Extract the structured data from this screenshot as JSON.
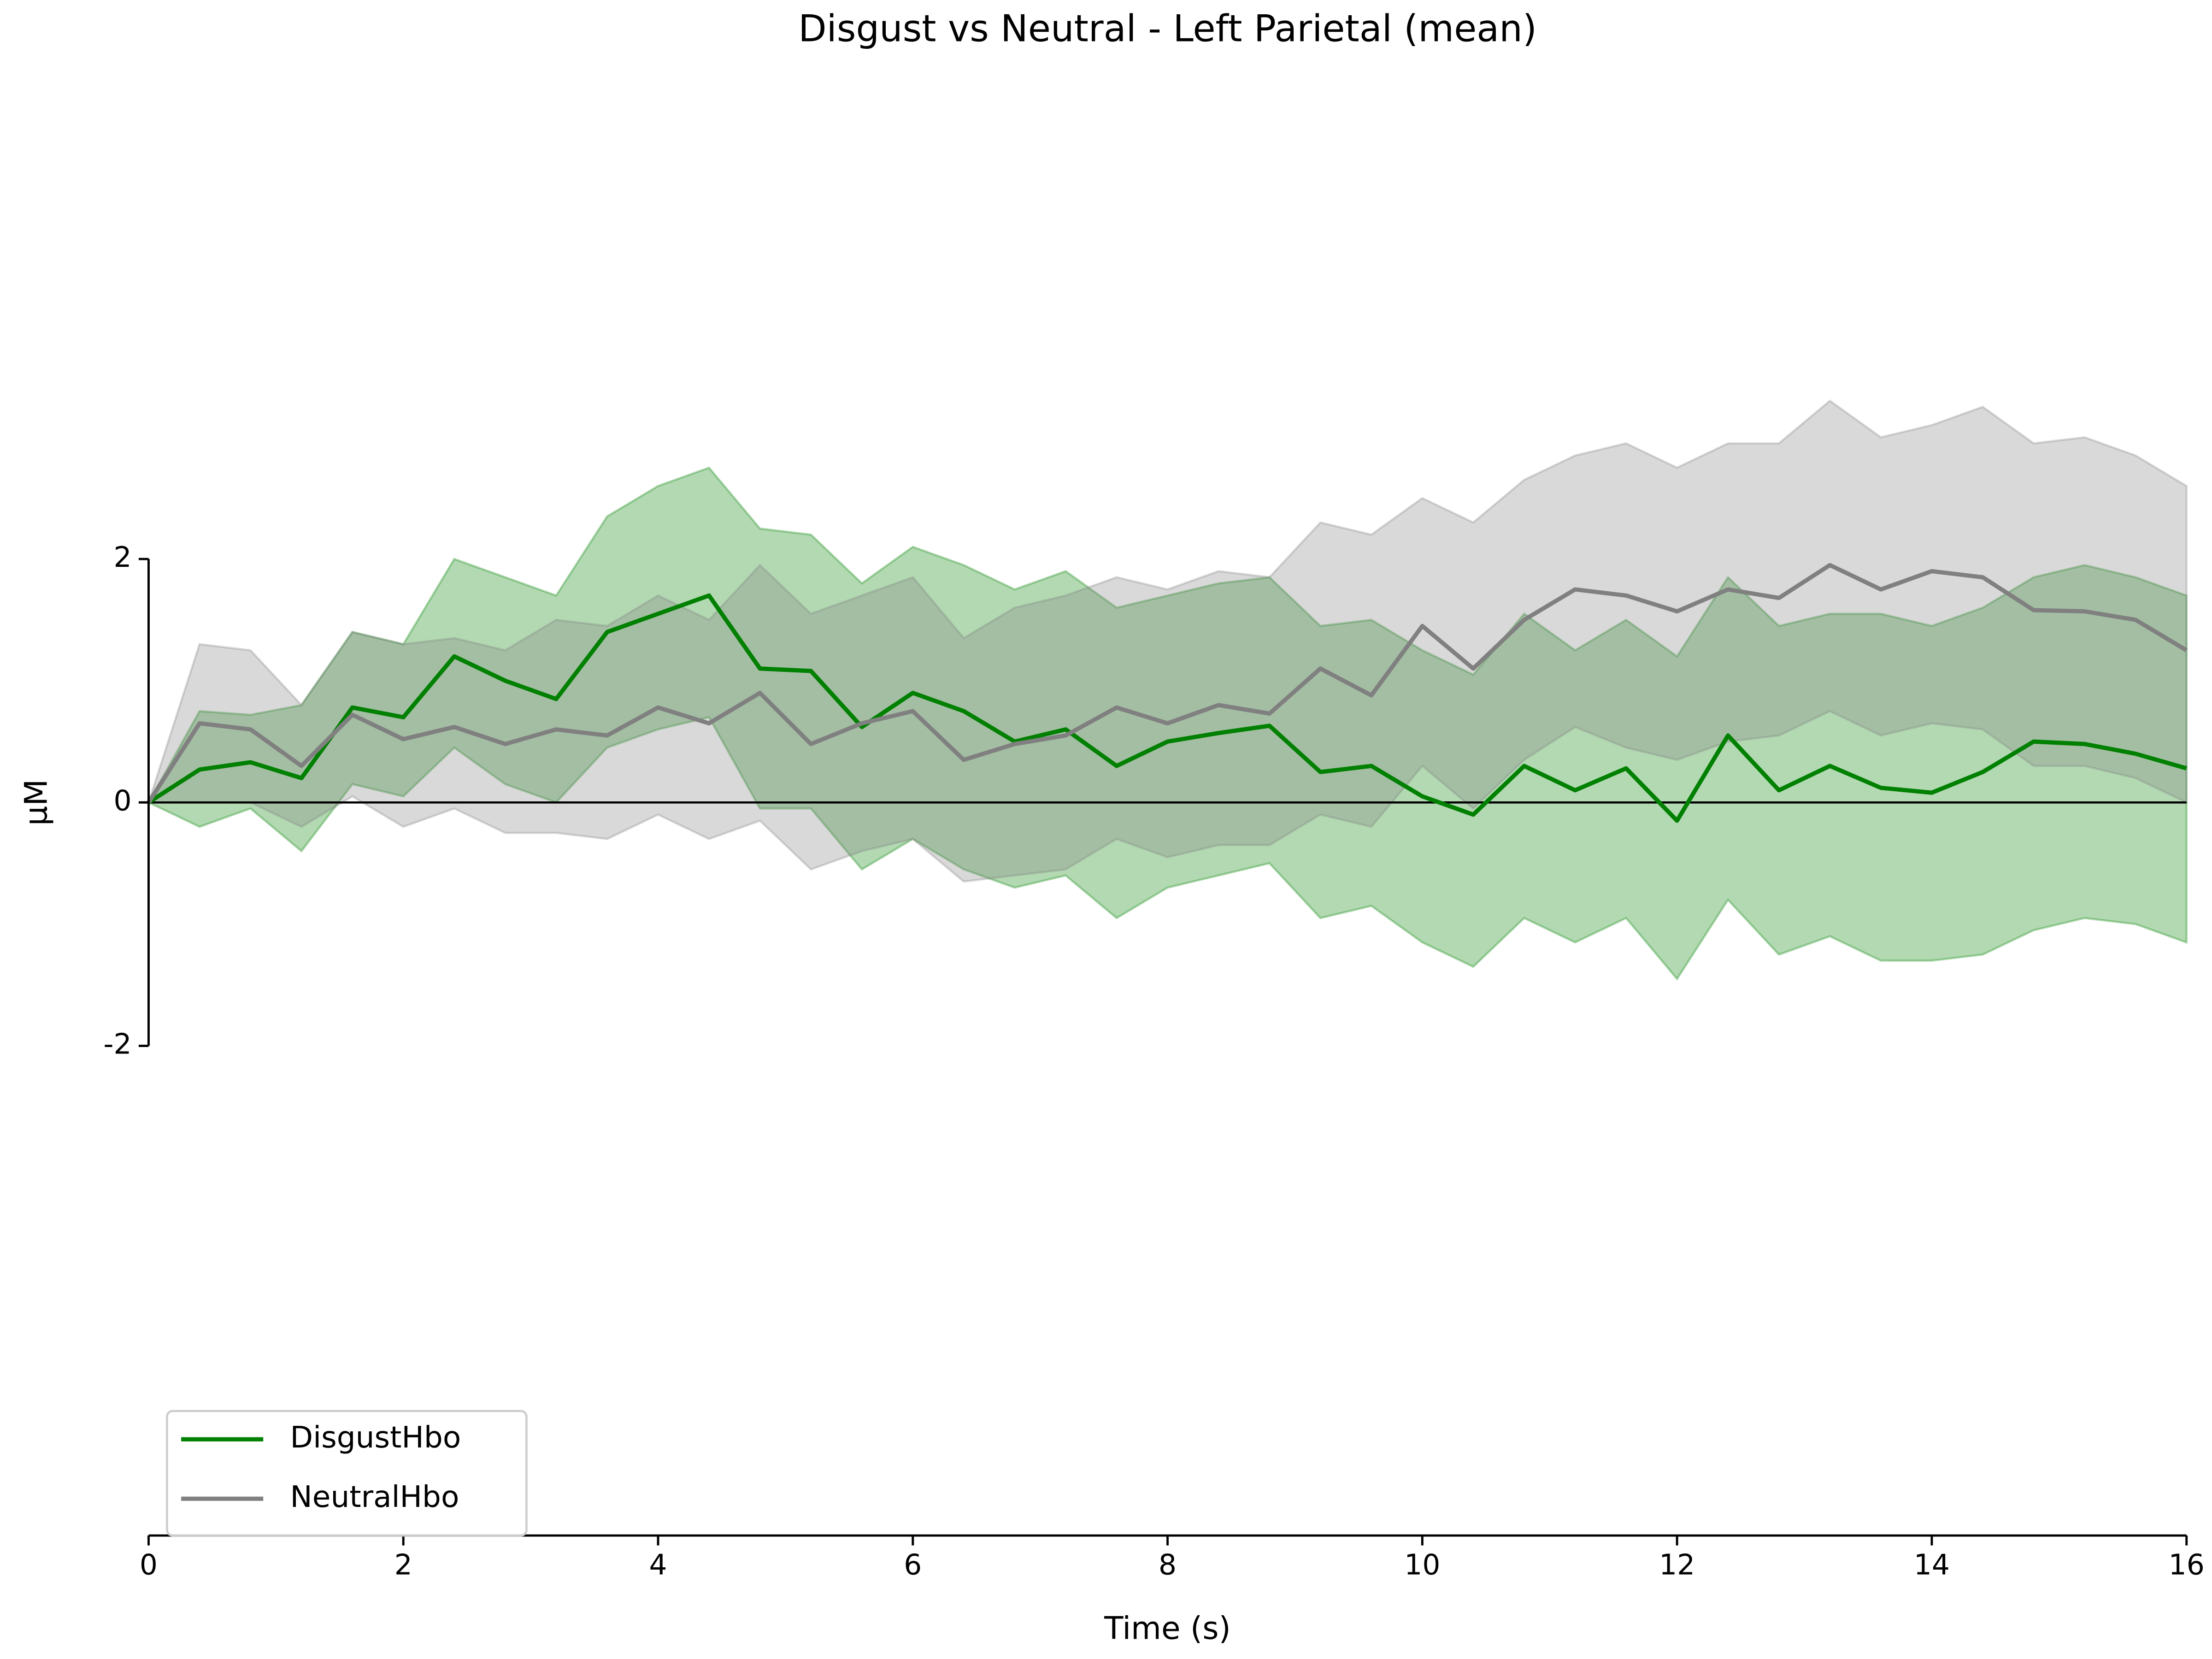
{
  "chart_data": {
    "type": "line",
    "title": "Disgust vs Neutral - Left Parietal (mean)",
    "xlabel": "Time (s)",
    "ylabel": "µM",
    "x": [
      0,
      0.4,
      0.8,
      1.2,
      1.6,
      2.0,
      2.4,
      2.8,
      3.2,
      3.6,
      4.0,
      4.4,
      4.8,
      5.2,
      5.6,
      6.0,
      6.4,
      6.8,
      7.2,
      7.6,
      8.0,
      8.4,
      8.8,
      9.2,
      9.6,
      10.0,
      10.4,
      10.8,
      11.2,
      11.6,
      12.0,
      12.4,
      12.8,
      13.2,
      13.6,
      14.0,
      14.4,
      14.8,
      15.2,
      15.6,
      16.0
    ],
    "series": [
      {
        "name": "DisgustHbo",
        "color": "#008000",
        "values": [
          0,
          0.27,
          0.33,
          0.2,
          0.78,
          0.7,
          1.2,
          1.0,
          0.85,
          1.4,
          1.55,
          1.7,
          1.1,
          1.08,
          0.62,
          0.9,
          0.75,
          0.5,
          0.6,
          0.3,
          0.5,
          0.57,
          0.63,
          0.25,
          0.3,
          0.05,
          -0.1,
          0.3,
          0.1,
          0.28,
          -0.15,
          0.55,
          0.1,
          0.3,
          0.12,
          0.08,
          0.25,
          0.5,
          0.48,
          0.4,
          0.28
        ],
        "upper": [
          0,
          0.75,
          0.72,
          0.8,
          1.4,
          1.3,
          2.0,
          1.85,
          1.7,
          2.35,
          2.6,
          2.75,
          2.25,
          2.2,
          1.8,
          2.1,
          1.95,
          1.75,
          1.9,
          1.6,
          1.7,
          1.8,
          1.85,
          1.45,
          1.5,
          1.25,
          1.05,
          1.55,
          1.25,
          1.5,
          1.2,
          1.85,
          1.45,
          1.55,
          1.55,
          1.45,
          1.6,
          1.85,
          1.95,
          1.85,
          1.7
        ],
        "lower": [
          0,
          -0.2,
          -0.05,
          -0.4,
          0.15,
          0.05,
          0.45,
          0.15,
          0.0,
          0.45,
          0.6,
          0.7,
          -0.05,
          -0.05,
          -0.55,
          -0.3,
          -0.55,
          -0.7,
          -0.6,
          -0.95,
          -0.7,
          -0.6,
          -0.5,
          -0.95,
          -0.85,
          -1.15,
          -1.35,
          -0.95,
          -1.15,
          -0.95,
          -1.45,
          -0.8,
          -1.25,
          -1.1,
          -1.3,
          -1.3,
          -1.25,
          -1.05,
          -0.95,
          -1.0,
          -1.15
        ]
      },
      {
        "name": "NeutralHbo",
        "color": "#808080",
        "values": [
          0,
          0.65,
          0.6,
          0.3,
          0.72,
          0.52,
          0.62,
          0.48,
          0.6,
          0.55,
          0.78,
          0.65,
          0.9,
          0.48,
          0.65,
          0.75,
          0.35,
          0.48,
          0.55,
          0.78,
          0.65,
          0.8,
          0.73,
          1.1,
          0.88,
          1.45,
          1.1,
          1.5,
          1.75,
          1.7,
          1.57,
          1.75,
          1.68,
          1.95,
          1.75,
          1.9,
          1.85,
          1.58,
          1.57,
          1.5,
          1.25
        ],
        "upper": [
          0,
          1.3,
          1.25,
          0.8,
          1.4,
          1.3,
          1.35,
          1.25,
          1.5,
          1.45,
          1.7,
          1.5,
          1.95,
          1.55,
          1.7,
          1.85,
          1.35,
          1.6,
          1.7,
          1.85,
          1.75,
          1.9,
          1.85,
          2.3,
          2.2,
          2.5,
          2.3,
          2.65,
          2.85,
          2.95,
          2.75,
          2.95,
          2.95,
          3.3,
          3.0,
          3.1,
          3.25,
          2.95,
          3.0,
          2.85,
          2.6
        ],
        "lower": [
          0,
          0.0,
          0.0,
          -0.2,
          0.05,
          -0.2,
          -0.05,
          -0.25,
          -0.25,
          -0.3,
          -0.1,
          -0.3,
          -0.15,
          -0.55,
          -0.4,
          -0.3,
          -0.65,
          -0.6,
          -0.55,
          -0.3,
          -0.45,
          -0.35,
          -0.35,
          -0.1,
          -0.2,
          0.3,
          -0.05,
          0.35,
          0.62,
          0.45,
          0.35,
          0.5,
          0.55,
          0.75,
          0.55,
          0.65,
          0.6,
          0.3,
          0.3,
          0.2,
          0.0
        ]
      }
    ],
    "hline": 0,
    "xlim": [
      0,
      16
    ],
    "xticks": [
      0,
      2,
      4,
      6,
      8,
      10,
      12,
      14,
      16
    ],
    "ylim": [
      -6,
      6
    ],
    "yticks": [
      -2,
      0,
      2
    ],
    "legend": "lower left"
  }
}
